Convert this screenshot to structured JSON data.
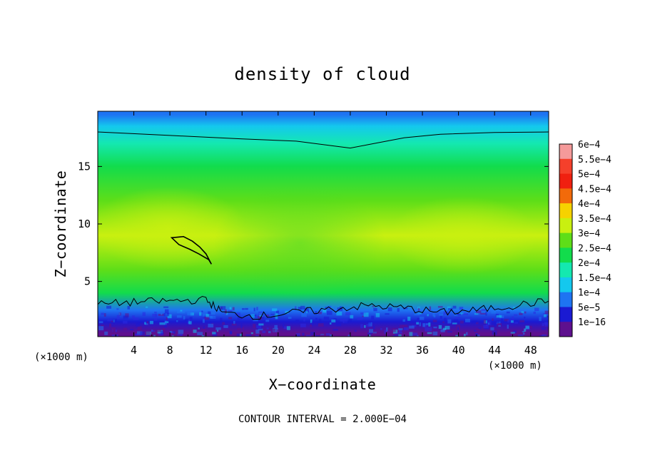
{
  "chart_data": {
    "type": "heatmap",
    "title": "density of cloud",
    "xlabel": "X−coordinate",
    "ylabel": "Z−coordinate",
    "x_unit": "(×1000 m)",
    "x_unit_bottom": "(×1000 m)",
    "footnote": "CONTOUR INTERVAL = 2.000E−04",
    "xlim": [
      0,
      50
    ],
    "ylim": [
      0.2,
      19.8
    ],
    "x_ticks": [
      4,
      8,
      12,
      16,
      20,
      24,
      28,
      32,
      36,
      40,
      44,
      48
    ],
    "x_tick_labels": [
      "4",
      "8",
      "12",
      "16",
      "20",
      "24",
      "28",
      "32",
      "36",
      "40",
      "44",
      "48"
    ],
    "y_ticks": [
      5,
      10,
      15
    ],
    "y_tick_labels": [
      "5",
      "10",
      "15"
    ],
    "colorbar": {
      "labels": [
        "6e−4",
        "5.5e−4",
        "5e−4",
        "4.5e−4",
        "4e−4",
        "3.5e−4",
        "3e−4",
        "2.5e−4",
        "2e−4",
        "1.5e−4",
        "1e−4",
        "5e−5",
        "1e−16"
      ],
      "colors": [
        "#f59a9a",
        "#f5402b",
        "#f02010",
        "#f26a0a",
        "#f6d200",
        "#c9f010",
        "#5ede18",
        "#12dc4c",
        "#14e8b0",
        "#14c8ee",
        "#1e74f2",
        "#1a1ad2",
        "#5e108e"
      ]
    },
    "field_description": "cloud density field; z-rows from ground to top",
    "profile_z": [
      0.5,
      1.5,
      2.5,
      4,
      6,
      9,
      12,
      15,
      17,
      18.5,
      19.5
    ],
    "profile_values": [
      2e-05,
      6e-05,
      0.00013,
      0.00026,
      0.00032,
      0.00036,
      0.00034,
      0.00028,
      0.00021,
      0.00016,
      0.0001
    ],
    "upper_contour_x": [
      0,
      8,
      16,
      22,
      26,
      28,
      30,
      34,
      38,
      44,
      50
    ],
    "upper_contour_z": [
      18.0,
      17.7,
      17.4,
      17.2,
      16.8,
      16.6,
      16.9,
      17.5,
      17.8,
      17.95,
      18.0
    ],
    "lower_contour_x": [
      0,
      4,
      8,
      12,
      14,
      18,
      22,
      26,
      30,
      34,
      38,
      42,
      46,
      50
    ],
    "lower_contour_z": [
      3.0,
      3.2,
      3.3,
      3.4,
      2.2,
      2.0,
      2.3,
      2.6,
      2.9,
      2.7,
      2.3,
      2.5,
      2.9,
      3.3
    ],
    "island_contour_x": [
      8.2,
      9.5,
      10.5,
      11.3,
      12.0,
      12.6,
      12.3,
      11.2,
      10.2,
      9.0,
      8.2
    ],
    "island_contour_z": [
      8.8,
      8.9,
      8.5,
      8.0,
      7.4,
      6.5,
      6.9,
      7.4,
      7.8,
      8.2,
      8.8
    ]
  }
}
